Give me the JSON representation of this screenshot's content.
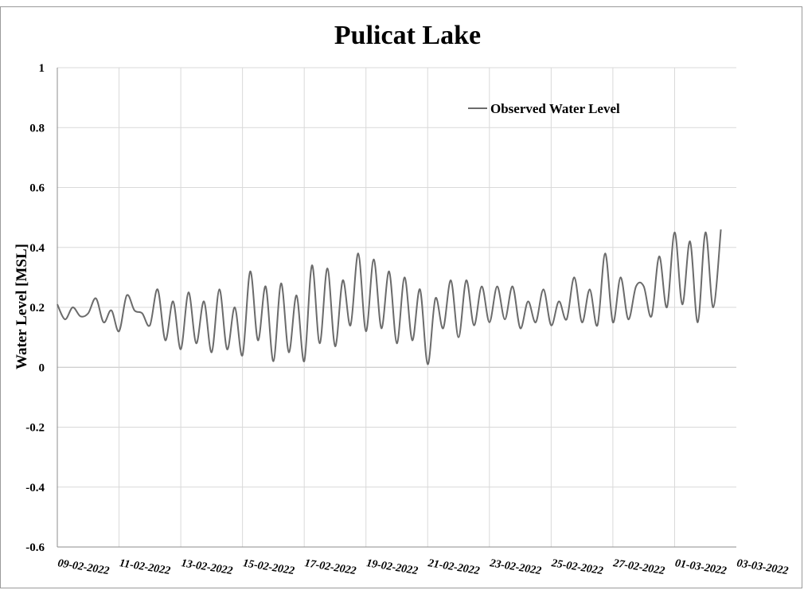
{
  "colors": {
    "series": "#6b6b6b",
    "grid": "#d9d9d9",
    "zero": "#bfbfbf",
    "axis": "#8c8c8c"
  },
  "chart_data": {
    "type": "line",
    "title": "Pulicat Lake",
    "xlabel": "",
    "ylabel": "Water Level [MSL]",
    "ylim": [
      -0.6,
      1
    ],
    "yticks": [
      -0.6,
      -0.4,
      -0.2,
      0,
      0.2,
      0.4,
      0.6,
      0.8,
      1
    ],
    "ytick_labels": [
      "-0.6",
      "-0.4",
      "-0.2",
      "0",
      "0.2",
      "0.4",
      "0.6",
      "0.8",
      "1"
    ],
    "xlim": [
      "09-02-2022",
      "03-03-2022"
    ],
    "xticks": [
      "09-02-2022",
      "11-02-2022",
      "13-02-2022",
      "15-02-2022",
      "17-02-2022",
      "19-02-2022",
      "21-02-2022",
      "23-02-2022",
      "25-02-2022",
      "27-02-2022",
      "01-03-2022",
      "03-03-2022"
    ],
    "grid": true,
    "legend": "top-right",
    "series": [
      {
        "name": "Observed Water Level",
        "color": "#6b6b6b",
        "points": [
          [
            "09-02-2022 00:00",
            0.21
          ],
          [
            "09-02-2022 06:00",
            0.16
          ],
          [
            "09-02-2022 12:00",
            0.2
          ],
          [
            "09-02-2022 18:00",
            0.17
          ],
          [
            "10-02-2022 00:00",
            0.18
          ],
          [
            "10-02-2022 06:00",
            0.23
          ],
          [
            "10-02-2022 12:00",
            0.15
          ],
          [
            "10-02-2022 18:00",
            0.19
          ],
          [
            "11-02-2022 00:00",
            0.12
          ],
          [
            "11-02-2022 06:00",
            0.24
          ],
          [
            "11-02-2022 12:00",
            0.19
          ],
          [
            "11-02-2022 18:00",
            0.18
          ],
          [
            "12-02-2022 00:00",
            0.14
          ],
          [
            "12-02-2022 06:00",
            0.26
          ],
          [
            "12-02-2022 12:00",
            0.09
          ],
          [
            "12-02-2022 18:00",
            0.22
          ],
          [
            "13-02-2022 00:00",
            0.06
          ],
          [
            "13-02-2022 06:00",
            0.25
          ],
          [
            "13-02-2022 12:00",
            0.08
          ],
          [
            "13-02-2022 18:00",
            0.22
          ],
          [
            "14-02-2022 00:00",
            0.05
          ],
          [
            "14-02-2022 06:00",
            0.26
          ],
          [
            "14-02-2022 12:00",
            0.06
          ],
          [
            "14-02-2022 18:00",
            0.2
          ],
          [
            "15-02-2022 00:00",
            0.04
          ],
          [
            "15-02-2022 06:00",
            0.32
          ],
          [
            "15-02-2022 12:00",
            0.09
          ],
          [
            "15-02-2022 18:00",
            0.27
          ],
          [
            "16-02-2022 00:00",
            0.02
          ],
          [
            "16-02-2022 06:00",
            0.28
          ],
          [
            "16-02-2022 12:00",
            0.05
          ],
          [
            "16-02-2022 18:00",
            0.24
          ],
          [
            "17-02-2022 00:00",
            0.02
          ],
          [
            "17-02-2022 06:00",
            0.34
          ],
          [
            "17-02-2022 12:00",
            0.08
          ],
          [
            "17-02-2022 18:00",
            0.33
          ],
          [
            "18-02-2022 00:00",
            0.07
          ],
          [
            "18-02-2022 06:00",
            0.29
          ],
          [
            "18-02-2022 12:00",
            0.14
          ],
          [
            "18-02-2022 18:00",
            0.38
          ],
          [
            "19-02-2022 00:00",
            0.12
          ],
          [
            "19-02-2022 06:00",
            0.36
          ],
          [
            "19-02-2022 12:00",
            0.13
          ],
          [
            "19-02-2022 18:00",
            0.32
          ],
          [
            "20-02-2022 00:00",
            0.08
          ],
          [
            "20-02-2022 06:00",
            0.3
          ],
          [
            "20-02-2022 12:00",
            0.09
          ],
          [
            "20-02-2022 18:00",
            0.26
          ],
          [
            "21-02-2022 00:00",
            0.01
          ],
          [
            "21-02-2022 06:00",
            0.23
          ],
          [
            "21-02-2022 12:00",
            0.13
          ],
          [
            "21-02-2022 18:00",
            0.29
          ],
          [
            "22-02-2022 00:00",
            0.1
          ],
          [
            "22-02-2022 06:00",
            0.29
          ],
          [
            "22-02-2022 12:00",
            0.14
          ],
          [
            "22-02-2022 18:00",
            0.27
          ],
          [
            "23-02-2022 00:00",
            0.15
          ],
          [
            "23-02-2022 06:00",
            0.27
          ],
          [
            "23-02-2022 12:00",
            0.16
          ],
          [
            "23-02-2022 18:00",
            0.27
          ],
          [
            "24-02-2022 00:00",
            0.13
          ],
          [
            "24-02-2022 06:00",
            0.22
          ],
          [
            "24-02-2022 12:00",
            0.15
          ],
          [
            "24-02-2022 18:00",
            0.26
          ],
          [
            "25-02-2022 00:00",
            0.14
          ],
          [
            "25-02-2022 06:00",
            0.22
          ],
          [
            "25-02-2022 12:00",
            0.16
          ],
          [
            "25-02-2022 18:00",
            0.3
          ],
          [
            "26-02-2022 00:00",
            0.15
          ],
          [
            "26-02-2022 06:00",
            0.26
          ],
          [
            "26-02-2022 12:00",
            0.14
          ],
          [
            "26-02-2022 18:00",
            0.38
          ],
          [
            "27-02-2022 00:00",
            0.15
          ],
          [
            "27-02-2022 06:00",
            0.3
          ],
          [
            "27-02-2022 12:00",
            0.16
          ],
          [
            "27-02-2022 18:00",
            0.27
          ],
          [
            "28-02-2022 00:00",
            0.27
          ],
          [
            "28-02-2022 06:00",
            0.17
          ],
          [
            "28-02-2022 12:00",
            0.37
          ],
          [
            "28-02-2022 18:00",
            0.2
          ],
          [
            "01-03-2022 00:00",
            0.45
          ],
          [
            "01-03-2022 06:00",
            0.21
          ],
          [
            "01-03-2022 12:00",
            0.42
          ],
          [
            "01-03-2022 18:00",
            0.15
          ],
          [
            "02-03-2022 00:00",
            0.45
          ],
          [
            "02-03-2022 06:00",
            0.2
          ],
          [
            "02-03-2022 12:00",
            0.46
          ]
        ]
      }
    ]
  }
}
